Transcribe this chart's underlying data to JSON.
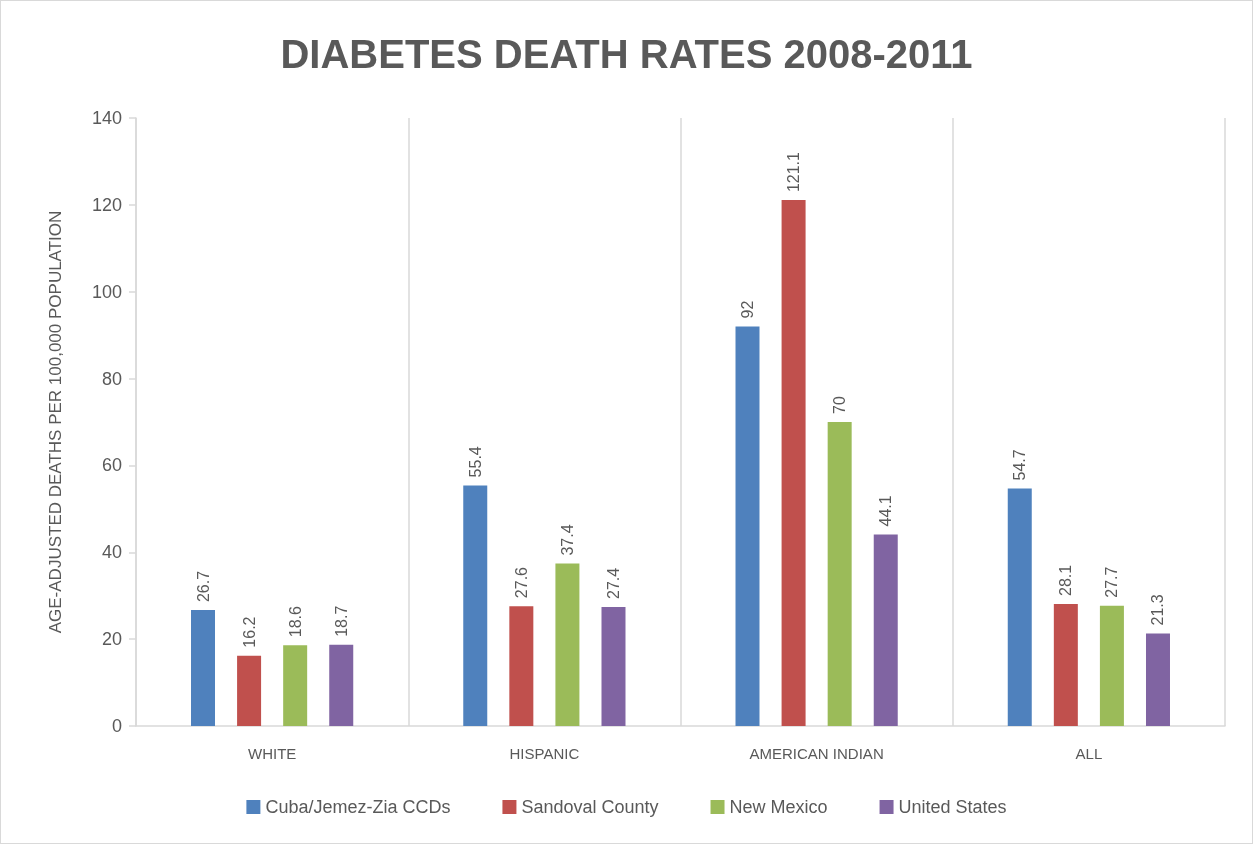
{
  "chart_data": {
    "type": "bar",
    "title": "DIABETES DEATH RATES 2008-2011",
    "ylabel": "AGE-ADJUSTED DEATHS PER 100,000 POPULATION",
    "categories": [
      "WHITE",
      "HISPANIC",
      "AMERICAN INDIAN",
      "ALL"
    ],
    "series": [
      {
        "name": "Cuba/Jemez-Zia CCDs",
        "color": "#4f81bd",
        "values": [
          26.7,
          55.4,
          92,
          54.7
        ]
      },
      {
        "name": "Sandoval County",
        "color": "#c0504d",
        "values": [
          16.2,
          27.6,
          121.1,
          28.1
        ]
      },
      {
        "name": "New Mexico",
        "color": "#9bbb59",
        "values": [
          18.6,
          37.4,
          70,
          27.7
        ]
      },
      {
        "name": "United States",
        "color": "#8064a2",
        "values": [
          18.7,
          27.4,
          44.1,
          21.3
        ]
      }
    ],
    "ylim": [
      0,
      140
    ],
    "yticks": [
      0,
      20,
      40,
      60,
      80,
      100,
      120,
      140
    ],
    "grid": "x",
    "legend": "bottom",
    "data_labels": true
  }
}
